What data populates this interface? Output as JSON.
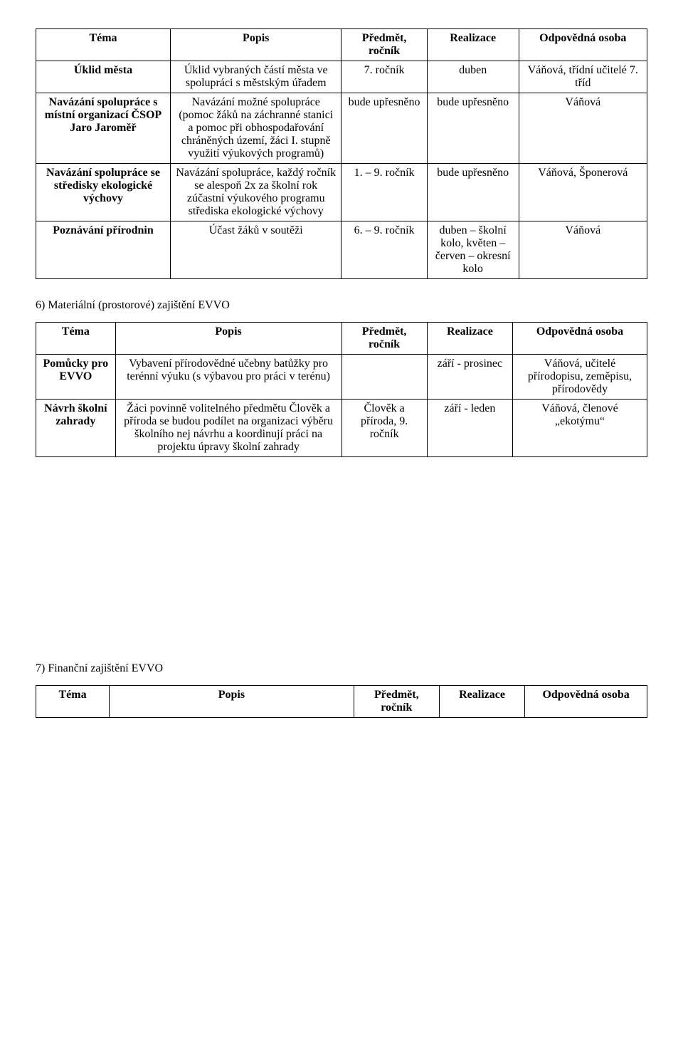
{
  "table1": {
    "headers": [
      "Téma",
      "Popis",
      "Předmět, ročník",
      "Realizace",
      "Odpovědná osoba"
    ],
    "rows": [
      {
        "tema": "Úklid města",
        "popis": "Úklid vybraných částí města ve spolupráci s městským úřadem",
        "predmet": "7. ročník",
        "realizace": "duben",
        "odpovedna": "Váňová, třídní učitelé 7. tříd"
      },
      {
        "tema": "Navázání spolupráce s místní organizací ČSOP Jaro Jaroměř",
        "popis": "Navázání možné spolupráce (pomoc žáků na záchranné stanici a pomoc při obhospodařování chráněných území, žáci I. stupně využití výukových programů)",
        "predmet": "bude upřesněno",
        "realizace": "bude upřesněno",
        "odpovedna": "Váňová"
      },
      {
        "tema": "Navázání spolupráce se středisky ekologické výchovy",
        "popis": "Navázání spolupráce, každý ročník se alespoň 2x za školní rok zúčastní výukového programu střediska ekologické výchovy",
        "predmet": "1. – 9. ročník",
        "realizace": "bude upřesněno",
        "odpovedna": "Váňová, Šponerová"
      },
      {
        "tema": "Poznávání přírodnin",
        "popis": "Účast žáků v soutěži",
        "predmet": "6. – 9. ročník",
        "realizace": "duben – školní kolo, květen – červen – okresní kolo",
        "odpovedna": "Váňová"
      }
    ]
  },
  "section6": {
    "heading": "6) Materiální (prostorové) zajištění EVVO"
  },
  "table2": {
    "headers": [
      "Téma",
      "Popis",
      "Předmět, ročník",
      "Realizace",
      "Odpovědná osoba"
    ],
    "rows": [
      {
        "tema": "Pomůcky pro EVVO",
        "popis": "Vybavení přírodovědné učebny batůžky pro terénní výuku (s výbavou pro práci v terénu)",
        "predmet": "",
        "realizace": "září - prosinec",
        "odpovedna": "Váňová, učitelé přírodopisu, zeměpisu, přírodovědy"
      },
      {
        "tema": "Návrh školní zahrady",
        "popis": "Žáci povinně volitelného předmětu Člověk a příroda se budou podílet na organizaci výběru školního nej návrhu a koordinují práci na projektu úpravy školní zahrady",
        "predmet": "Člověk a příroda, 9. ročník",
        "realizace": "září - leden",
        "odpovedna": "Váňová, členové „ekotýmu“"
      }
    ]
  },
  "section7": {
    "heading": "7) Finanční zajištění EVVO"
  },
  "table3": {
    "headers": [
      "Téma",
      "Popis",
      "Předmět, ročník",
      "Realizace",
      "Odpovědná osoba"
    ]
  }
}
